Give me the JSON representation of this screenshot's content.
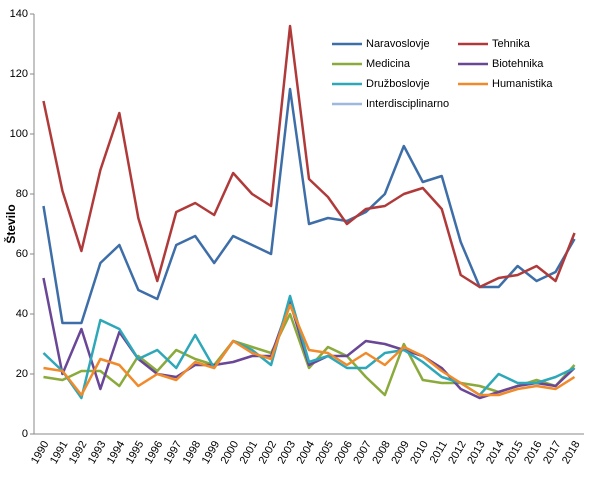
{
  "chart_data": {
    "type": "line",
    "y_label": "Število",
    "categories": [
      "1990",
      "1991",
      "1992",
      "1993",
      "1994",
      "1995",
      "1996",
      "1997",
      "1998",
      "1999",
      "2000",
      "2001",
      "2002",
      "2003",
      "2004",
      "2005",
      "2006",
      "2007",
      "2008",
      "2009",
      "2010",
      "2011",
      "2012",
      "2013",
      "2014",
      "2015",
      "2016",
      "2017",
      "2018"
    ],
    "series": [
      {
        "name": "Naravoslovje",
        "color": "#3e6ea8",
        "values": [
          76,
          37,
          37,
          57,
          63,
          48,
          45,
          63,
          66,
          57,
          66,
          63,
          60,
          115,
          70,
          72,
          71,
          74,
          80,
          96,
          84,
          86,
          64,
          49,
          49,
          56,
          51,
          54,
          65
        ]
      },
      {
        "name": "Tehnika",
        "color": "#b03a3a",
        "values": [
          111,
          81,
          61,
          88,
          107,
          72,
          51,
          74,
          77,
          73,
          87,
          80,
          76,
          136,
          85,
          79,
          70,
          75,
          76,
          80,
          82,
          75,
          53,
          49,
          52,
          53,
          56,
          51,
          67
        ]
      },
      {
        "name": "Medicina",
        "color": "#8aaa3c",
        "values": [
          19,
          18,
          21,
          21,
          16,
          26,
          21,
          28,
          25,
          23,
          31,
          29,
          27,
          40,
          22,
          29,
          26,
          19,
          13,
          30,
          18,
          17,
          17,
          16,
          14,
          16,
          18,
          16,
          23
        ]
      },
      {
        "name": "Biotehnika",
        "color": "#6a4696",
        "values": [
          52,
          20,
          35,
          15,
          34,
          25,
          20,
          19,
          23,
          23,
          24,
          26,
          26,
          44,
          23,
          26,
          26,
          31,
          30,
          28,
          26,
          22,
          15,
          12,
          14,
          16,
          17,
          16,
          22
        ]
      },
      {
        "name": "Družboslovje",
        "color": "#2ea8b8",
        "values": [
          27,
          21,
          12,
          38,
          35,
          25,
          28,
          22,
          33,
          22,
          31,
          28,
          23,
          46,
          24,
          26,
          22,
          22,
          27,
          28,
          24,
          19,
          17,
          13,
          20,
          17,
          17,
          19,
          22
        ]
      },
      {
        "name": "Humanistika",
        "color": "#f08a2a",
        "values": [
          22,
          21,
          13,
          25,
          23,
          16,
          20,
          18,
          24,
          22,
          31,
          27,
          25,
          43,
          28,
          27,
          23,
          27,
          23,
          29,
          26,
          21,
          17,
          13,
          13,
          15,
          16,
          15,
          19
        ]
      },
      {
        "name": "Interdisciplinarno",
        "color": "#9fb8e0",
        "values": [
          null,
          null,
          null,
          null,
          null,
          null,
          null,
          null,
          null,
          null,
          null,
          null,
          null,
          null,
          null,
          null,
          null,
          null,
          null,
          null,
          null,
          null,
          null,
          null,
          null,
          null,
          null,
          null,
          null
        ]
      }
    ],
    "ylim": [
      0,
      140
    ],
    "yticks": [
      0,
      20,
      40,
      60,
      80,
      100,
      120,
      140
    ],
    "grid": false
  }
}
